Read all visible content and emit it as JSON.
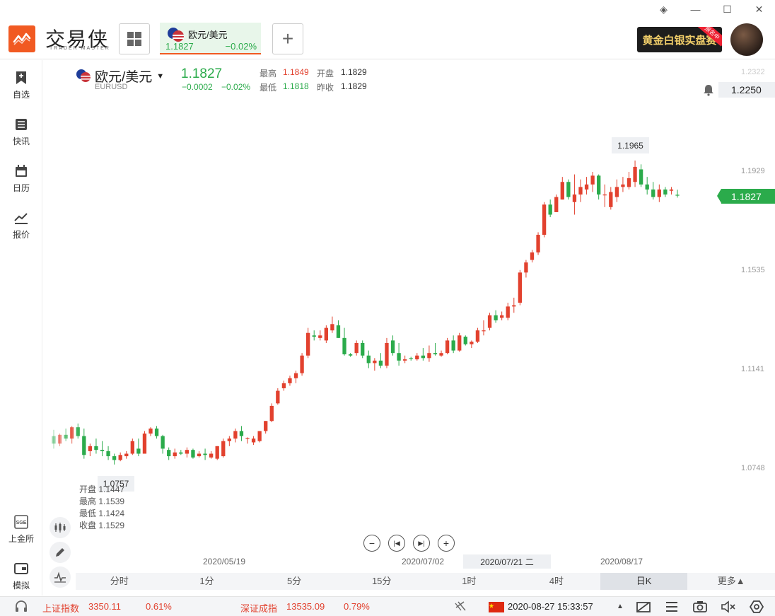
{
  "window_controls": {
    "layers": "◈",
    "minimize": "—",
    "maximize": "☐",
    "close": "✕"
  },
  "header": {
    "logo_text": "交易侠",
    "logo_sub": "TRADER MASTER",
    "tab": {
      "name": "欧元/美元",
      "price": "1.1827",
      "pct": "−0.02%"
    },
    "add": "+",
    "banner": "黄金白银实盘赛",
    "banner_tag": "报名中"
  },
  "sidebar": {
    "items": [
      {
        "label": "自选",
        "icon": "bookmark-plus-icon"
      },
      {
        "label": "快讯",
        "icon": "news-list-icon"
      },
      {
        "label": "日历",
        "icon": "calendar-icon"
      },
      {
        "label": "报价",
        "icon": "trend-line-icon"
      },
      {
        "label": "上金所",
        "icon": "sge-icon"
      },
      {
        "label": "模拟",
        "icon": "wallet-icon"
      }
    ]
  },
  "quote": {
    "symbol": "欧元/美元",
    "code": "EURUSD",
    "price": "1.1827",
    "change": "−0.0002",
    "change_pct": "−0.02%",
    "high_label": "最高",
    "high": "1.1849",
    "open_label": "开盘",
    "open": "1.1829",
    "low_label": "最低",
    "low": "1.1818",
    "prev_label": "昨收",
    "prev": "1.1829"
  },
  "alert_price": "1.2250",
  "current_price_tag": "1.1827",
  "y_axis": [
    "1.2322",
    "1.1929",
    "1.1535",
    "1.1141",
    "1.0748"
  ],
  "x_axis": [
    "2020/05/19",
    "2020/07/02",
    "2020/08/17"
  ],
  "x_cursor": "2020/07/21 二",
  "max_marker": "1.1965",
  "min_marker": "1.0757",
  "cursor_ohlc": {
    "open_label": "开盘",
    "open": "1.1447",
    "high_label": "最高",
    "high": "1.1539",
    "low_label": "最低",
    "low": "1.1424",
    "close_label": "收盘",
    "close": "1.1529"
  },
  "periods": [
    "分时",
    "1分",
    "5分",
    "15分",
    "1时",
    "4时",
    "日K",
    "更多▲"
  ],
  "active_period": "日K",
  "status": {
    "sh_name": "上证指数",
    "sh_value": "3350.11",
    "sh_pct": "0.61%",
    "sz_name": "深证成指",
    "sz_value": "13535.09",
    "sz_pct": "0.79%",
    "datetime": "2020-08-27 15:33:57"
  },
  "colors": {
    "up": "#e2412e",
    "down": "#2bab4b",
    "accent": "#f15a22"
  },
  "chart_data": {
    "type": "candlestick",
    "y_min": 1.0748,
    "y_max": 1.2322,
    "candles": [
      [
        1.087,
        1.0895,
        1.082,
        1.084
      ],
      [
        1.084,
        1.088,
        1.083,
        1.0875
      ],
      [
        1.0875,
        1.09,
        1.085,
        1.086
      ],
      [
        1.086,
        1.091,
        1.084,
        1.0905
      ],
      [
        1.0905,
        1.092,
        1.086,
        1.087
      ],
      [
        1.087,
        1.09,
        1.078,
        1.0795
      ],
      [
        1.081,
        1.084,
        1.079,
        1.083
      ],
      [
        1.083,
        1.086,
        1.08,
        1.0815
      ],
      [
        1.0815,
        1.085,
        1.079,
        1.081
      ],
      [
        1.081,
        1.083,
        1.0775,
        1.079
      ],
      [
        1.079,
        1.08,
        1.0757,
        1.0775
      ],
      [
        1.0775,
        1.0805,
        1.077,
        1.0795
      ],
      [
        1.079,
        1.081,
        1.078,
        1.08
      ],
      [
        1.08,
        1.086,
        1.0795,
        1.085
      ],
      [
        1.082,
        1.086,
        1.079,
        1.08
      ],
      [
        1.08,
        1.089,
        1.08,
        1.088
      ],
      [
        1.088,
        1.0905,
        1.087,
        1.09
      ],
      [
        1.09,
        1.091,
        1.086,
        1.087
      ],
      [
        1.087,
        1.0875,
        1.08,
        1.082
      ],
      [
        1.0815,
        1.0825,
        1.0775,
        1.079
      ],
      [
        1.079,
        1.082,
        1.078,
        1.0805
      ],
      [
        1.0805,
        1.0815,
        1.0795,
        1.08
      ],
      [
        1.08,
        1.0825,
        1.0785,
        1.0815
      ],
      [
        1.0815,
        1.082,
        1.078,
        1.0785
      ],
      [
        1.079,
        1.081,
        1.0785,
        1.08
      ],
      [
        1.08,
        1.082,
        1.0775,
        1.0795
      ],
      [
        1.0785,
        1.081,
        1.078,
        1.08
      ],
      [
        1.078,
        1.083,
        1.0775,
        1.083
      ],
      [
        1.079,
        1.086,
        1.0785,
        1.085
      ],
      [
        1.085,
        1.087,
        1.083,
        1.086
      ],
      [
        1.086,
        1.09,
        1.0845,
        1.089
      ],
      [
        1.089,
        1.091,
        1.085,
        1.087
      ],
      [
        1.086,
        1.0865,
        1.084,
        1.0862
      ],
      [
        1.0845,
        1.087,
        1.0835,
        1.086
      ],
      [
        1.085,
        1.089,
        1.0845,
        1.089
      ],
      [
        1.089,
        1.093,
        1.088,
        1.093
      ],
      [
        1.093,
        1.1,
        1.0925,
        1.099
      ],
      [
        1.1,
        1.106,
        1.0995,
        1.105
      ],
      [
        1.106,
        1.109,
        1.105,
        1.108
      ],
      [
        1.108,
        1.111,
        1.107,
        1.11
      ],
      [
        1.11,
        1.113,
        1.108,
        1.112
      ],
      [
        1.112,
        1.12,
        1.111,
        1.119
      ],
      [
        1.119,
        1.13,
        1.118,
        1.128
      ],
      [
        1.127,
        1.129,
        1.125,
        1.1265
      ],
      [
        1.126,
        1.129,
        1.125,
        1.127
      ],
      [
        1.125,
        1.131,
        1.124,
        1.13
      ],
      [
        1.129,
        1.1345,
        1.128,
        1.1315
      ],
      [
        1.131,
        1.133,
        1.126,
        1.126
      ],
      [
        1.126,
        1.13,
        1.119,
        1.1195
      ],
      [
        1.1195,
        1.12,
        1.1185,
        1.119
      ],
      [
        1.12,
        1.125,
        1.119,
        1.124
      ],
      [
        1.124,
        1.125,
        1.118,
        1.119
      ],
      [
        1.119,
        1.121,
        1.114,
        1.116
      ],
      [
        1.116,
        1.118,
        1.113,
        1.117
      ],
      [
        1.117,
        1.12,
        1.114,
        1.115
      ],
      [
        1.115,
        1.126,
        1.114,
        1.124
      ],
      [
        1.125,
        1.127,
        1.119,
        1.12
      ],
      [
        1.12,
        1.124,
        1.115,
        1.117
      ],
      [
        1.117,
        1.119,
        1.116,
        1.1175
      ],
      [
        1.118,
        1.1185,
        1.117,
        1.1178
      ],
      [
        1.1175,
        1.12,
        1.117,
        1.119
      ],
      [
        1.119,
        1.122,
        1.117,
        1.118
      ],
      [
        1.118,
        1.123,
        1.1165,
        1.12
      ],
      [
        1.12,
        1.124,
        1.119,
        1.1195
      ],
      [
        1.119,
        1.121,
        1.1185,
        1.12
      ],
      [
        1.12,
        1.126,
        1.1195,
        1.125
      ],
      [
        1.125,
        1.127,
        1.12,
        1.121
      ],
      [
        1.121,
        1.128,
        1.1205,
        1.127
      ],
      [
        1.1265,
        1.127,
        1.123,
        1.1235
      ],
      [
        1.1235,
        1.125,
        1.122,
        1.1245
      ],
      [
        1.1245,
        1.13,
        1.124,
        1.129
      ],
      [
        1.129,
        1.133,
        1.127,
        1.129
      ],
      [
        1.13,
        1.136,
        1.129,
        1.135
      ],
      [
        1.135,
        1.137,
        1.132,
        1.133
      ],
      [
        1.134,
        1.1365,
        1.133,
        1.135
      ],
      [
        1.134,
        1.14,
        1.133,
        1.1385
      ],
      [
        1.1385,
        1.142,
        1.136,
        1.139
      ],
      [
        1.14,
        1.153,
        1.139,
        1.152
      ],
      [
        1.152,
        1.157,
        1.15,
        1.156
      ],
      [
        1.157,
        1.161,
        1.156,
        1.16
      ],
      [
        1.16,
        1.168,
        1.159,
        1.167
      ],
      [
        1.167,
        1.18,
        1.166,
        1.179
      ],
      [
        1.179,
        1.181,
        1.174,
        1.175
      ],
      [
        1.176,
        1.183,
        1.176,
        1.182
      ],
      [
        1.181,
        1.19,
        1.181,
        1.188
      ],
      [
        1.188,
        1.189,
        1.181,
        1.182
      ],
      [
        1.18,
        1.191,
        1.175,
        1.183
      ],
      [
        1.183,
        1.189,
        1.18,
        1.186
      ],
      [
        1.185,
        1.19,
        1.183,
        1.187
      ],
      [
        1.187,
        1.192,
        1.184,
        1.1905
      ],
      [
        1.1905,
        1.191,
        1.181,
        1.183
      ],
      [
        1.183,
        1.187,
        1.178,
        1.183
      ],
      [
        1.178,
        1.186,
        1.177,
        1.184
      ],
      [
        1.182,
        1.189,
        1.18,
        1.186
      ],
      [
        1.186,
        1.19,
        1.184,
        1.187
      ],
      [
        1.186,
        1.192,
        1.185,
        1.1895
      ],
      [
        1.188,
        1.1965,
        1.186,
        1.194
      ],
      [
        1.193,
        1.195,
        1.186,
        1.187
      ],
      [
        1.187,
        1.19,
        1.183,
        1.185
      ],
      [
        1.185,
        1.188,
        1.181,
        1.182
      ],
      [
        1.182,
        1.187,
        1.18,
        1.185
      ],
      [
        1.185,
        1.186,
        1.182,
        1.183
      ],
      [
        1.1845,
        1.186,
        1.183,
        1.185
      ],
      [
        1.1829,
        1.1849,
        1.1818,
        1.1827
      ]
    ]
  }
}
